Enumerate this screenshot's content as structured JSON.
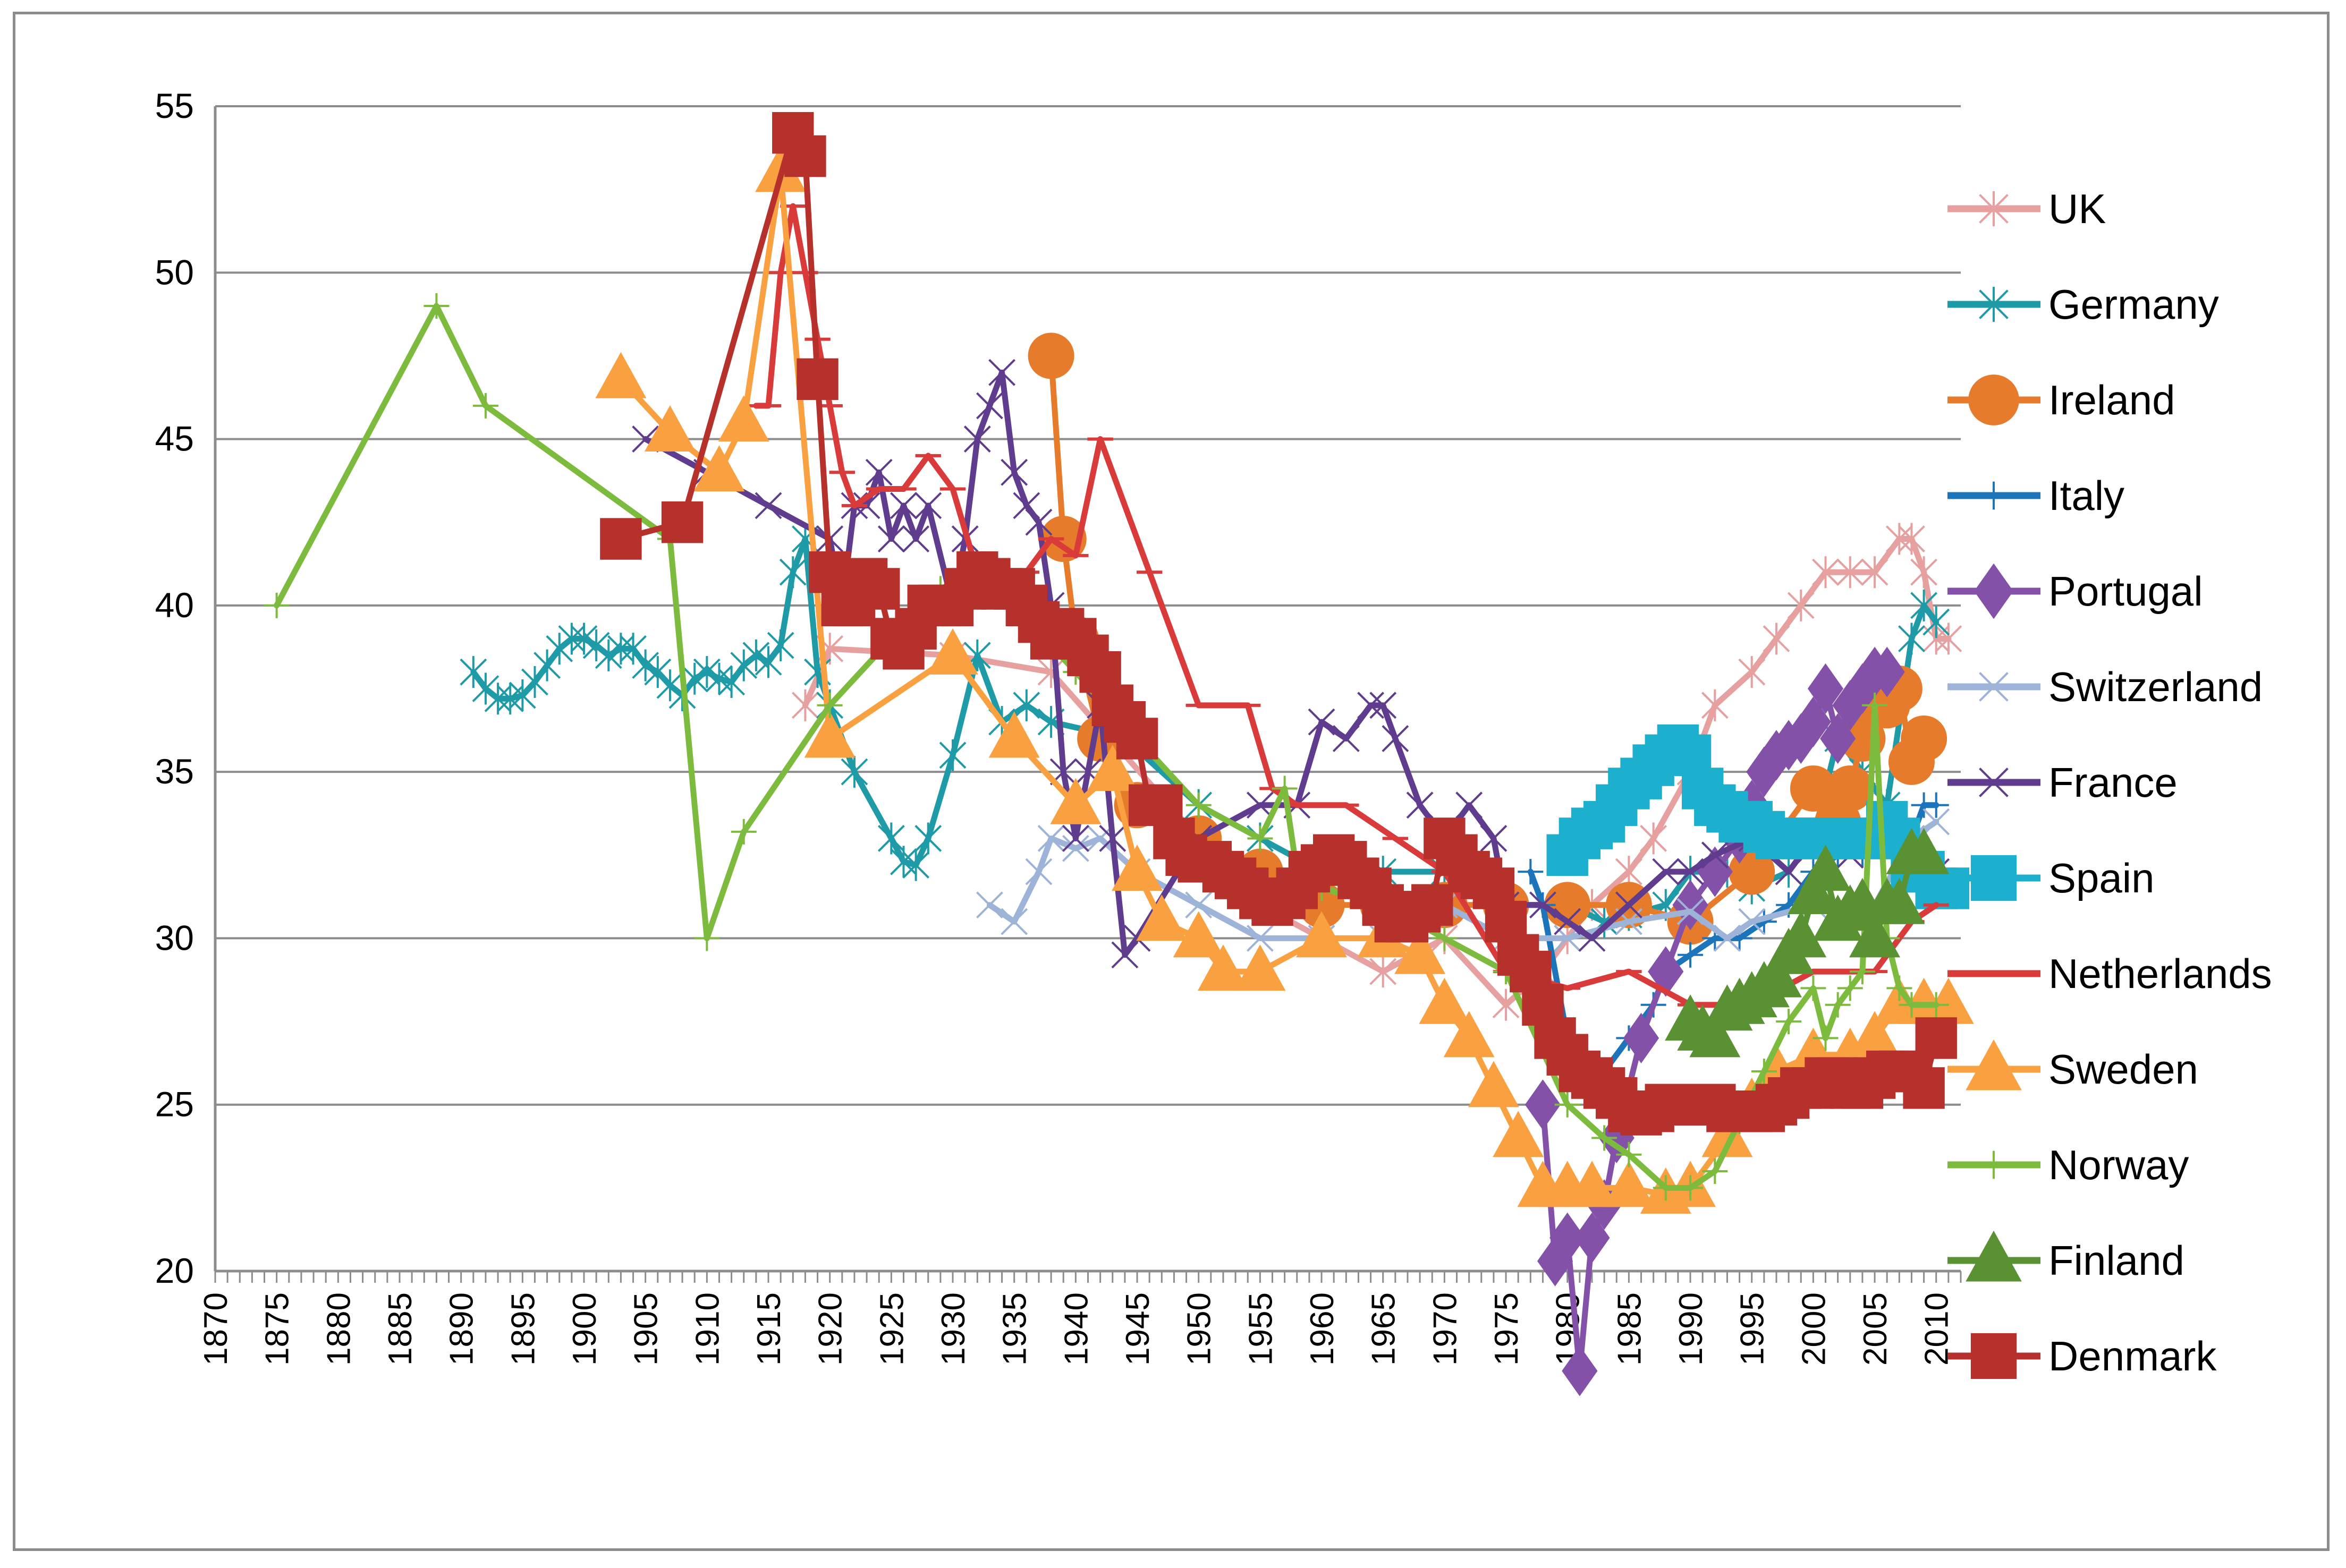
{
  "chart_data": {
    "type": "line",
    "title": "",
    "xlabel": "",
    "ylabel": "",
    "xlim": [
      1870,
      2012
    ],
    "ylim": [
      20,
      55
    ],
    "yticks": [
      20,
      25,
      30,
      35,
      40,
      45,
      50,
      55
    ],
    "xticks": [
      1870,
      1875,
      1880,
      1885,
      1890,
      1895,
      1900,
      1905,
      1910,
      1915,
      1920,
      1925,
      1930,
      1935,
      1940,
      1945,
      1950,
      1955,
      1960,
      1965,
      1970,
      1975,
      1980,
      1985,
      1990,
      1995,
      2000,
      2005,
      2010
    ],
    "grid": true,
    "legend_position": "right",
    "series": [
      {
        "name": "UK",
        "color": "#E6A0A0",
        "marker": "asterisk",
        "x": [
          1918,
          1920,
          1930,
          1938,
          1950,
          1955,
          1960,
          1965,
          1970,
          1975,
          1978,
          1980,
          1982,
          1985,
          1987,
          1990,
          1992,
          1995,
          1997,
          1999,
          2001,
          2003,
          2005,
          2007,
          2008,
          2009,
          2010,
          2011
        ],
        "y": [
          37,
          38.7,
          38.5,
          38,
          33,
          31,
          30,
          29,
          30,
          28,
          29,
          30,
          31,
          32,
          33,
          35,
          37,
          38,
          39,
          40,
          41,
          41,
          41,
          42,
          42,
          41,
          39,
          39
        ]
      },
      {
        "name": "Germany",
        "color": "#1F9BA8",
        "marker": "asterisk",
        "x": [
          1891,
          1892,
          1893,
          1894,
          1895,
          1896,
          1897,
          1898,
          1899,
          1900,
          1901,
          1902,
          1903,
          1904,
          1905,
          1906,
          1907,
          1908,
          1909,
          1910,
          1911,
          1912,
          1913,
          1914,
          1915,
          1916,
          1917,
          1918,
          1919,
          1920,
          1922,
          1925,
          1926,
          1927,
          1928,
          1930,
          1932,
          1934,
          1936,
          1938,
          1944,
          1950,
          1955,
          1960,
          1965,
          1970,
          1975,
          1980,
          1983,
          1985,
          1988,
          1990,
          1993,
          1995,
          1998,
          2000,
          2002,
          2004,
          2006,
          2008,
          2009,
          2010
        ],
        "y": [
          38,
          37.5,
          37.2,
          37.2,
          37.3,
          37.7,
          38.2,
          38.7,
          39,
          39,
          38.8,
          38.5,
          38.7,
          38.7,
          38.2,
          38,
          37.6,
          37.3,
          37.8,
          38,
          37.8,
          37.7,
          38.2,
          38.5,
          38.3,
          38.8,
          41,
          42,
          38,
          37,
          35,
          33,
          32.3,
          32.2,
          33,
          35.5,
          38.5,
          36.5,
          37,
          36.5,
          36,
          34,
          33,
          32,
          32,
          32,
          31,
          31,
          30.5,
          30.7,
          31,
          32,
          32,
          31.5,
          32,
          33,
          36,
          35,
          34,
          39,
          40,
          39.5
        ]
      },
      {
        "name": "Ireland",
        "color": "#E77B2C",
        "marker": "circle",
        "x": [
          1938,
          1939,
          1940,
          1942,
          1945,
          1950,
          1955,
          1960,
          1965,
          1970,
          1975,
          1980,
          1985,
          1990,
          1995,
          2000,
          2002,
          2003,
          2004,
          2005,
          2006,
          2007,
          2008,
          2009
        ],
        "y": [
          47.5,
          42,
          39,
          36,
          34,
          33,
          32,
          31,
          31,
          31,
          31,
          31,
          31,
          30.5,
          32,
          34.5,
          33.5,
          34.5,
          36,
          37,
          37,
          37.5,
          35.3,
          36
        ]
      },
      {
        "name": "Italy",
        "color": "#1C74BB",
        "marker": "plus",
        "x": [
          1977,
          1978,
          1980,
          1982,
          1983,
          1985,
          1987,
          1988,
          1990,
          1992,
          1994,
          1996,
          1998,
          2000,
          2002,
          2004,
          2006,
          2008,
          2009,
          2010
        ],
        "y": [
          32,
          31,
          27,
          26,
          26,
          27,
          28,
          29,
          29.5,
          30,
          30,
          30.5,
          31,
          32,
          32.5,
          32.5,
          33,
          33,
          34,
          34
        ]
      },
      {
        "name": "Portugal",
        "color": "#8352A8",
        "marker": "diamond",
        "x": [
          1978,
          1979,
          1980,
          1981,
          1982,
          1983,
          1984,
          1986,
          1988,
          1990,
          1992,
          1994,
          1995,
          1996,
          1997,
          1998,
          1999,
          2000,
          2001,
          2002,
          2003,
          2004,
          2005,
          2006
        ],
        "y": [
          25,
          20.3,
          21,
          17,
          21,
          22,
          24,
          27,
          29,
          31,
          32,
          33,
          34,
          35,
          35.5,
          35.8,
          36,
          36.5,
          37.5,
          36,
          37,
          37.5,
          38,
          38
        ]
      },
      {
        "name": "Switzerland",
        "color": "#9DB3D7",
        "marker": "x",
        "x": [
          1933,
          1935,
          1937,
          1938,
          1940,
          1942,
          1945,
          1950,
          1955,
          1960,
          1965,
          1970,
          1975,
          1980,
          1985,
          1990,
          1993,
          1995,
          2000,
          2005,
          2008,
          2010
        ],
        "y": [
          31,
          30.5,
          32,
          33,
          32.7,
          33,
          32,
          31,
          30,
          30,
          30,
          31,
          30,
          30,
          30.5,
          30.8,
          30,
          30.5,
          31,
          31,
          33,
          33.5
        ]
      },
      {
        "name": "France",
        "color": "#5F3C8E",
        "marker": "x",
        "x": [
          1905,
          1910,
          1915,
          1920,
          1921,
          1922,
          1923,
          1924,
          1925,
          1926,
          1927,
          1928,
          1930,
          1931,
          1932,
          1933,
          1934,
          1935,
          1936,
          1937,
          1938,
          1939,
          1940,
          1941,
          1942,
          1943,
          1944,
          1945,
          1950,
          1955,
          1958,
          1960,
          1962,
          1964,
          1965,
          1966,
          1968,
          1970,
          1972,
          1974,
          1975,
          1978,
          1980,
          1982,
          1985,
          1988,
          1990,
          1992,
          1995,
          1998,
          2000,
          2003,
          2005,
          2008,
          2010
        ],
        "y": [
          45,
          44,
          43,
          42,
          40,
          43,
          43,
          44,
          42,
          43,
          42,
          43,
          40,
          42,
          45,
          46,
          47,
          44,
          43,
          42.5,
          40,
          35,
          33,
          35,
          37,
          33,
          29.5,
          30,
          33,
          34,
          34,
          36.5,
          36,
          37,
          37,
          36,
          34,
          33,
          34,
          33,
          31,
          31,
          30.5,
          30,
          31,
          32,
          32,
          32.5,
          33,
          32,
          33,
          32.5,
          33,
          32,
          32
        ]
      },
      {
        "name": "Spain",
        "color": "#1DB0CE",
        "marker": "square",
        "x": [
          1980,
          1981,
          1982,
          1983,
          1984,
          1985,
          1986,
          1987,
          1988,
          1989,
          1990,
          1991,
          1992,
          1993,
          1994,
          1995,
          1996,
          1997,
          1998,
          1999,
          2000,
          2001,
          2002,
          2003,
          2004,
          2005,
          2006,
          2007,
          2008,
          2009,
          2010,
          2011
        ],
        "y": [
          32.5,
          33,
          33.3,
          33.5,
          34,
          34.5,
          34.8,
          35.2,
          35.5,
          35.8,
          35.5,
          34.5,
          34,
          33.8,
          33.5,
          33.5,
          33.2,
          33,
          33,
          33,
          33,
          33,
          33,
          33,
          33,
          33,
          33.5,
          33,
          32,
          32,
          31.5,
          31.5
        ]
      },
      {
        "name": "Netherlands",
        "color": "#D93A3A",
        "marker": "dash",
        "x": [
          1914,
          1915,
          1916,
          1917,
          1918,
          1919,
          1920,
          1921,
          1922,
          1924,
          1926,
          1928,
          1930,
          1932,
          1934,
          1936,
          1938,
          1940,
          1942,
          1946,
          1950,
          1952,
          1954,
          1956,
          1958,
          1962,
          1966,
          1970,
          1975,
          1980,
          1985,
          1990,
          1995,
          2000,
          2005,
          2008,
          2010
        ],
        "y": [
          46,
          46,
          50,
          52,
          50,
          48,
          46,
          44,
          43,
          43.5,
          43.5,
          44.5,
          43.5,
          41,
          41,
          41,
          42,
          41.5,
          45,
          41,
          37,
          37,
          37,
          34.5,
          34,
          34,
          33,
          32,
          29,
          28.5,
          29,
          28,
          28,
          29,
          29,
          30.5,
          31
        ]
      },
      {
        "name": "Sweden",
        "color": "#F9A040",
        "marker": "triangle",
        "x": [
          1903,
          1907,
          1911,
          1913,
          1916,
          1920,
          1930,
          1935,
          1940,
          1943,
          1945,
          1947,
          1950,
          1952,
          1955,
          1960,
          1965,
          1968,
          1970,
          1972,
          1974,
          1976,
          1978,
          1980,
          1982,
          1985,
          1988,
          1990,
          1993,
          1995,
          1997,
          2000,
          2003,
          2005,
          2007,
          2009,
          2011
        ],
        "y": [
          46.8,
          45.2,
          44,
          45.5,
          53,
          36,
          38.5,
          36,
          34,
          35,
          32,
          30.5,
          30,
          29,
          29,
          30,
          30,
          29.5,
          28,
          27,
          25.5,
          24,
          22.5,
          22.5,
          22.5,
          22.5,
          22.3,
          22.5,
          24,
          25,
          26,
          26.5,
          26.5,
          27,
          28,
          28,
          28
        ]
      },
      {
        "name": "Norway",
        "color": "#7DBB3E",
        "marker": "plus",
        "x": [
          1875,
          1888,
          1892,
          1907,
          1910,
          1913,
          1920,
          1925,
          1929,
          1932,
          1935,
          1940,
          1945,
          1950,
          1955,
          1957,
          1958,
          1960,
          1965,
          1970,
          1975,
          1980,
          1983,
          1985,
          1988,
          1990,
          1992,
          1994,
          1996,
          1998,
          2000,
          2001,
          2002,
          2003,
          2004,
          2005,
          2006,
          2007,
          2008,
          2010
        ],
        "y": [
          40,
          49,
          46,
          42,
          30,
          33.2,
          37,
          39,
          40.5,
          41,
          40,
          38,
          36,
          34,
          33,
          34.5,
          32,
          31.5,
          31,
          30,
          29,
          25,
          24,
          23.5,
          22.5,
          22.5,
          23,
          24.5,
          26,
          27.5,
          28.5,
          27,
          28,
          28.5,
          29,
          37,
          30,
          28.5,
          28,
          28
        ]
      },
      {
        "name": "Finland",
        "color": "#5A9132",
        "marker": "triangle",
        "x": [
          1990,
          1991,
          1992,
          1993,
          1994,
          1995,
          1996,
          1997,
          1998,
          1999,
          2000,
          2001,
          2002,
          2003,
          2004,
          2005,
          2006,
          2007,
          2008,
          2009
        ],
        "y": [
          27.5,
          27.2,
          27,
          27.8,
          28,
          28.2,
          28.5,
          28.8,
          29.5,
          30,
          31.3,
          32,
          30.5,
          30.8,
          31,
          30,
          31,
          31,
          32.5,
          32.5
        ]
      },
      {
        "name": "Denmark",
        "color": "#B7312C",
        "marker": "square",
        "x": [
          1903,
          1908,
          1917,
          1918,
          1919,
          1920,
          1921,
          1922,
          1923,
          1924,
          1925,
          1926,
          1927,
          1928,
          1929,
          1930,
          1931,
          1932,
          1933,
          1934,
          1935,
          1936,
          1937,
          1938,
          1939,
          1940,
          1941,
          1942,
          1943,
          1944,
          1945,
          1946,
          1947,
          1948,
          1949,
          1950,
          1951,
          1952,
          1953,
          1954,
          1955,
          1956,
          1957,
          1958,
          1959,
          1960,
          1961,
          1962,
          1963,
          1964,
          1965,
          1966,
          1967,
          1968,
          1969,
          1970,
          1971,
          1972,
          1973,
          1974,
          1975,
          1976,
          1977,
          1978,
          1979,
          1980,
          1981,
          1982,
          1983,
          1984,
          1985,
          1986,
          1987,
          1988,
          1989,
          1990,
          1991,
          1992,
          1993,
          1994,
          1995,
          1996,
          1997,
          1998,
          1999,
          2000,
          2001,
          2002,
          2003,
          2004,
          2005,
          2006,
          2007,
          2008,
          2009,
          2010
        ],
        "y": [
          42,
          42.5,
          54.2,
          53.5,
          46.8,
          41,
          40,
          40,
          40.8,
          40.5,
          39,
          38.7,
          39.3,
          40,
          40,
          40,
          40.5,
          41,
          40.8,
          40.5,
          40.5,
          40,
          39.5,
          39,
          39.3,
          39,
          38.5,
          38,
          37,
          36.5,
          36,
          34,
          34,
          33,
          32.5,
          32.3,
          32.3,
          32,
          31.8,
          31.5,
          31.2,
          31,
          31.2,
          31.5,
          32,
          32.2,
          32.5,
          32.3,
          31.8,
          31.5,
          31,
          30.5,
          30.5,
          30.8,
          31,
          33,
          32.5,
          32,
          31.8,
          31.5,
          30.5,
          29.5,
          29,
          28,
          27,
          26.5,
          26,
          25.8,
          25.5,
          25.2,
          24.8,
          24.7,
          24.8,
          25,
          25,
          25,
          25,
          25,
          24.8,
          24.8,
          24.8,
          24.8,
          25,
          25.2,
          25.5,
          25.5,
          25.8,
          25.8,
          25.5,
          25.5,
          25.8,
          26,
          26,
          26,
          25.5,
          27
        ]
      }
    ]
  }
}
